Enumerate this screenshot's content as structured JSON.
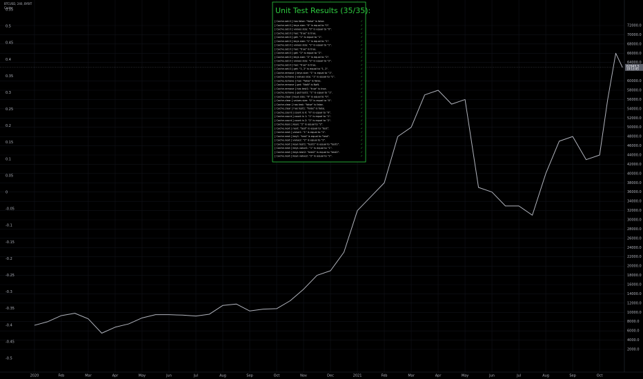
{
  "header": {
    "symbol": "BTCUSD, 240, BYBIT",
    "indicator": "Cache"
  },
  "chart_data": {
    "type": "line",
    "x": [
      0,
      0.5,
      1,
      1.5,
      2,
      2.5,
      3,
      3.5,
      4,
      4.5,
      5,
      5.5,
      6,
      6.5,
      7,
      7.5,
      8,
      8.5,
      9,
      9.5,
      10,
      10.5,
      11,
      11.5,
      12,
      12.5,
      13,
      13.5,
      14,
      14.5,
      15,
      15.5,
      16,
      16.5,
      17,
      17.5,
      18,
      18.5,
      19,
      19.5,
      20,
      20.5,
      21,
      21.3,
      21.6,
      21.85
    ],
    "series": [
      {
        "name": "BTCUSD",
        "color": "#b2b5be",
        "axis": "y2",
        "values": [
          7200,
          8000,
          9300,
          9800,
          8600,
          5500,
          6800,
          7500,
          8800,
          9500,
          9500,
          9400,
          9200,
          9600,
          11500,
          11800,
          10300,
          10700,
          10800,
          12500,
          15000,
          18000,
          19000,
          23000,
          32000,
          35000,
          38000,
          48000,
          50000,
          57000,
          58000,
          55000,
          56000,
          37000,
          36000,
          33000,
          33000,
          31000,
          40000,
          47000,
          48000,
          43000,
          44000,
          56000,
          66000,
          62945.5
        ]
      }
    ],
    "xlim": [
      -1.28,
      21.92
    ],
    "xticks": [
      {
        "value": 0,
        "label": "2020"
      },
      {
        "value": 1,
        "label": "Feb"
      },
      {
        "value": 2,
        "label": "Mar"
      },
      {
        "value": 3,
        "label": "Apr"
      },
      {
        "value": 4,
        "label": "May"
      },
      {
        "value": 5,
        "label": "Jun"
      },
      {
        "value": 6,
        "label": "Jul"
      },
      {
        "value": 7,
        "label": "Aug"
      },
      {
        "value": 8,
        "label": "Sep"
      },
      {
        "value": 9,
        "label": "Oct"
      },
      {
        "value": 10,
        "label": "Nov"
      },
      {
        "value": 11,
        "label": "Dec"
      },
      {
        "value": 12,
        "label": "2021"
      },
      {
        "value": 13,
        "label": "Feb"
      },
      {
        "value": 14,
        "label": "Mar"
      },
      {
        "value": 15,
        "label": "Apr"
      },
      {
        "value": 16,
        "label": "May"
      },
      {
        "value": 17,
        "label": "Jun"
      },
      {
        "value": 18,
        "label": "Jul"
      },
      {
        "value": 19,
        "label": "Aug"
      },
      {
        "value": 20,
        "label": "Sep"
      },
      {
        "value": 21,
        "label": "Oct"
      }
    ],
    "ylim": [
      -0.5415,
      0.579
    ],
    "yticks": [
      0.55,
      0.5,
      0.45,
      0.4,
      0.35,
      0.3,
      0.25,
      0.2,
      0.15,
      0.1,
      0.05,
      0,
      -0.05,
      -0.1,
      -0.15,
      -0.2,
      -0.25,
      -0.3,
      -0.35,
      -0.4,
      -0.45,
      -0.5
    ],
    "y2lim": [
      -2915,
      77510
    ],
    "y2ticks": [
      {
        "value": 2000,
        "label": "2000.0"
      },
      {
        "value": 4000,
        "label": "4000.0"
      },
      {
        "value": 6000,
        "label": "6000.0"
      },
      {
        "value": 8000,
        "label": "8000.0"
      },
      {
        "value": 10000,
        "label": "10000.0"
      },
      {
        "value": 12000,
        "label": "12000.0"
      },
      {
        "value": 14000,
        "label": "14000.0"
      },
      {
        "value": 16000,
        "label": "16000.0"
      },
      {
        "value": 18000,
        "label": "18000.0"
      },
      {
        "value": 20000,
        "label": "20000.0"
      },
      {
        "value": 22000,
        "label": "22000.0"
      },
      {
        "value": 24000,
        "label": "24000.0"
      },
      {
        "value": 26000,
        "label": "26000.0"
      },
      {
        "value": 28000,
        "label": "28000.0"
      },
      {
        "value": 30000,
        "label": "30000.0"
      },
      {
        "value": 32000,
        "label": "32000.0"
      },
      {
        "value": 34000,
        "label": "34000.0"
      },
      {
        "value": 36000,
        "label": "36000.0"
      },
      {
        "value": 38000,
        "label": "38000.0"
      },
      {
        "value": 40000,
        "label": "40000.0"
      },
      {
        "value": 42000,
        "label": "42000.0"
      },
      {
        "value": 44000,
        "label": "44000.0"
      },
      {
        "value": 46000,
        "label": "46000.0"
      },
      {
        "value": 48000,
        "label": "48000.0"
      },
      {
        "value": 50000,
        "label": "50000.0"
      },
      {
        "value": 52000,
        "label": "52000.0"
      },
      {
        "value": 54000,
        "label": "54000.0"
      },
      {
        "value": 56000,
        "label": "56000.0"
      },
      {
        "value": 58000,
        "label": "58000.0"
      },
      {
        "value": 60000,
        "label": "60000.0"
      },
      {
        "value": 64000,
        "label": "64000.0"
      },
      {
        "value": 66000,
        "label": "66000.0"
      },
      {
        "value": 68000,
        "label": "68000.0"
      },
      {
        "value": 70000,
        "label": "70000.0"
      },
      {
        "value": 72000,
        "label": "72000.0"
      }
    ],
    "last_price": 62945.5,
    "last_time": "19:13:45",
    "grid": true
  },
  "panel": {
    "title": "Unit Test Results (35/35):",
    "check": "✓",
    "rows": [
      "[ Cache.set.0 ] has false: \"false\" is false.",
      "[ Cache.set.0 ] keys size: \"0\" is equal to \"0\".",
      "[ Cache.set.0 ] values size: \"0\" is equal to \"0\".",
      "[ Cache.set.0 ] has: \"true\" is true.",
      "[ Cache.set.0 ] get: \"1\" is equal to \"1\".",
      "[ Cache.set.0 ] keys size: \"1\" is equal to \"1\".",
      "[ Cache.set.0 ] values size: \"1\" is equal to \"1\".",
      "[ Cache.set.0 ] has: \"true\" is true.",
      "[ Cache.set.0 ] get: \"2\" is equal to \"2\".",
      "[ Cache.set.0 ] keys size: \"2\" is equal to \"2\".",
      "[ Cache.set.0 ] values size: \"2\" is equal to \"2\".",
      "[ Cache.set.0 ] has: \"true\" is true.",
      "[ Cache.set.0 ] get: \"1, 2\" is equal to \"1, 2\".",
      "[ Cache.remove ] keys size: \"1\" is equal to \"1\".",
      "[ Cache.remove ] values size: \"1\" is equal to \"1\".",
      "[ Cache.remove ] has: \"false\" is false.",
      "[ Cache.remove ] get: \"NaN\" is NaN.",
      "[ Cache.remove ] has test1: \"true\" is true.",
      "[ Cache.remove ] get test1: \"1\" is equal to \"1\".",
      "[ Cache.clear ] keys size: \"0\" is equal to \"0\".",
      "[ Cache.clear ] values size: \"0\" is equal to \"0\".",
      "[ Cache.clear ] has test: \"false\" is false.",
      "[ Cache.clear ] has test1: \"false\" is false.",
      "[ Cache.count ] count is 0: \"0\" is equal to \"0\".",
      "[ Cache.count ] count is 1: \"1\" is equal to \"1\".",
      "[ Cache.count ] count is 2: \"2\" is equal to \"2\".",
      "[ Cache.keys ] keys: \"2\" is equal to \"2\".",
      "[ Cache.next ] next: \"test\" is equal to \"test\".",
      "[ Cache.next ] value1: \"1\" is equal to \"1\".",
      "[ Cache.next ] key1: \"test\" is equal to \"test\".",
      "[ Cache.next ] value2: \"2\" is equal to \"2\".",
      "[ Cache.next ] keys test1: \"test1\" is equal to \"test1\".",
      "[ Cache.next ] keys value1: \"1\" is equal to \"1\".",
      "[ Cache.next ] keys test2: \"test2\" is equal to \"test2\".",
      "[ Cache.next ] keys value2: \"2\" is equal to \"2\"."
    ]
  }
}
